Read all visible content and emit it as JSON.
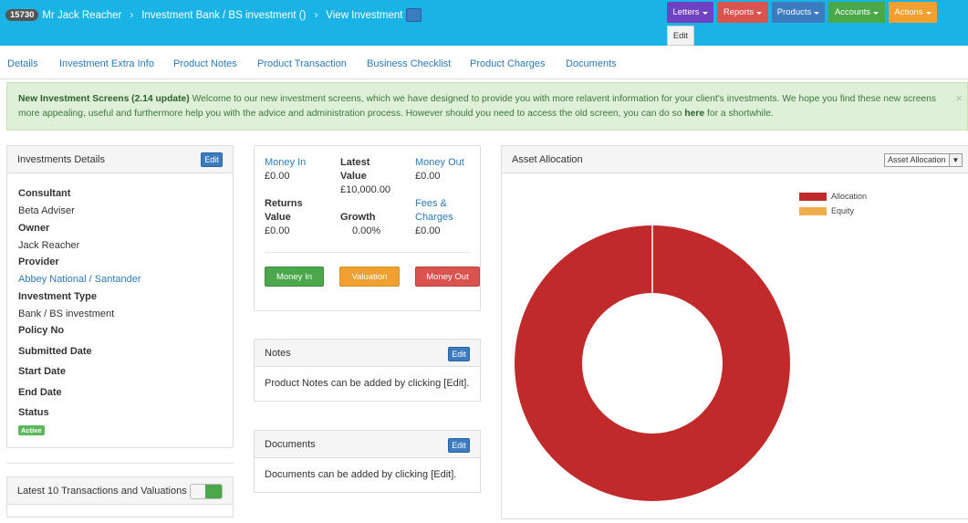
{
  "header": {
    "client_id": "15730",
    "client_name": "Mr Jack Reacher",
    "breadcrumb_investment": "Investment Bank / BS investment ()",
    "breadcrumb_view": "View Investment",
    "separator": "›",
    "buttons": {
      "letters": "Letters",
      "reports": "Reports",
      "products": "Products",
      "accounts": "Accounts",
      "actions": "Actions",
      "edit": "Edit"
    }
  },
  "tabs": [
    "Details",
    "Investment Extra Info",
    "Product Notes",
    "Product Transaction",
    "Business Checklist",
    "Product Charges",
    "Documents"
  ],
  "alert": {
    "title": "New Investment Screens (2.14 update)",
    "message": "Welcome to our new investment screens, which we have designed to provide you with more relavent information for your client's investments. We hope you find these new screens more appealing, useful and furthermore help you with the advice and administration process. However should you need to access the old screen, you can do so",
    "link": "here",
    "suffix": "for a shortwhile.",
    "close": "×"
  },
  "details_panel": {
    "title": "Investments Details",
    "edit": "Edit",
    "consultant_label": "Consultant",
    "consultant": "Beta Adviser",
    "owner_label": "Owner",
    "owner": "Jack Reacher",
    "provider_label": "Provider",
    "provider": "Abbey National / Santander",
    "type_label": "Investment Type",
    "type": "Bank / BS investment",
    "policy_label": "Policy No",
    "submitted_label": "Submitted Date",
    "start_label": "Start Date",
    "end_label": "End Date",
    "status_label": "Status",
    "status": "Active"
  },
  "transactions_panel": {
    "title": "Latest 10 Transactions and Valuations"
  },
  "money_panel": {
    "money_in_label": "Money In",
    "money_in": "£0.00",
    "latest_value_label_1": "Latest",
    "latest_value_label_2": "Value",
    "latest_value": "£10,000.00",
    "money_out_label": "Money Out",
    "money_out": "£0.00",
    "returns_label_1": "Returns",
    "returns_label_2": "Value",
    "returns_value": "£0.00",
    "growth_label": "Growth",
    "growth": "0.00%",
    "fees_label_1": "Fees &",
    "fees_label_2": "Charges",
    "fees": "£0.00",
    "btn_money_in": "Money In",
    "btn_valuation": "Valuation",
    "btn_money_out": "Money Out"
  },
  "notes_panel": {
    "title": "Notes",
    "edit": "Edit",
    "text": "Product Notes can be added by clicking [Edit]."
  },
  "documents_panel": {
    "title": "Documents",
    "edit": "Edit",
    "text": "Documents can be added by clicking [Edit]."
  },
  "asset_panel": {
    "title": "Asset Allocation",
    "select_value": "Asset Allocation"
  },
  "colors": {
    "topbar": "#1ab3e6",
    "letters": "#6f42c1",
    "reports": "#d9534f",
    "products": "#3b7bbf",
    "accounts": "#4aa84a",
    "actions": "#f0a030",
    "allocation": "#c12a2a",
    "equity": "#f0ad4e"
  },
  "chart_data": {
    "type": "pie",
    "categories": [
      "Allocation",
      "Equity"
    ],
    "values": [
      100,
      0
    ],
    "legend": "top-right",
    "donut": true
  }
}
